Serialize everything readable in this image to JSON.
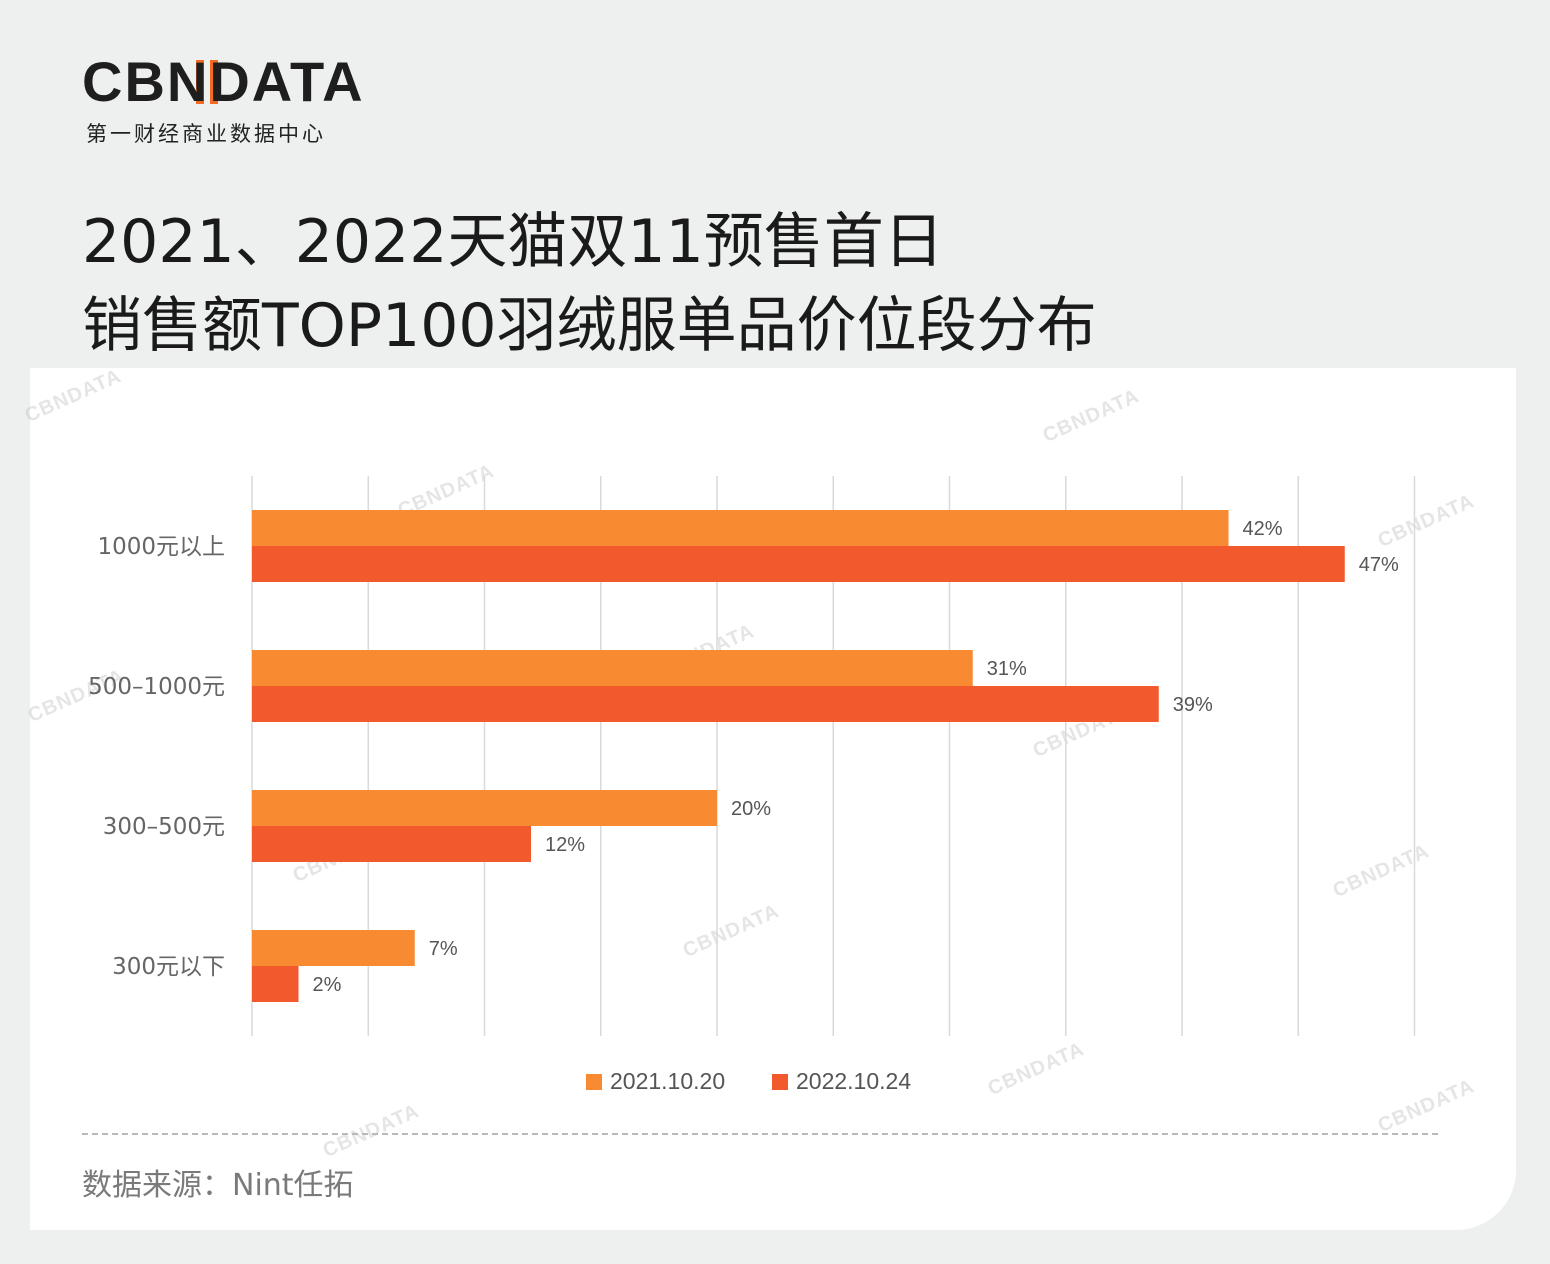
{
  "brand": {
    "logo_text": "CBNDATA",
    "subtitle": "第一财经商业数据中心",
    "accent_color": "#f26b22"
  },
  "title": {
    "line1": "2021、2022天猫双11预售首日",
    "line2": "销售额TOP100羽绒服单品价位段分布"
  },
  "chart_data": {
    "type": "bar",
    "orientation": "horizontal",
    "categories": [
      "1000元以上",
      "500–1000元",
      "300–500元",
      "300元以下"
    ],
    "series": [
      {
        "name": "2021.10.20",
        "color": "#f88a32",
        "values": [
          42,
          31,
          20,
          7
        ],
        "labels": [
          "42%",
          "31%",
          "20%",
          "7%"
        ]
      },
      {
        "name": "2022.10.24",
        "color": "#f25a2e",
        "values": [
          47,
          39,
          12,
          2
        ],
        "labels": [
          "47%",
          "39%",
          "12%",
          "2%"
        ]
      }
    ],
    "xlim": [
      0,
      50
    ],
    "grid": true,
    "legend_position": "bottom"
  },
  "source": "数据来源：Nint任拓"
}
